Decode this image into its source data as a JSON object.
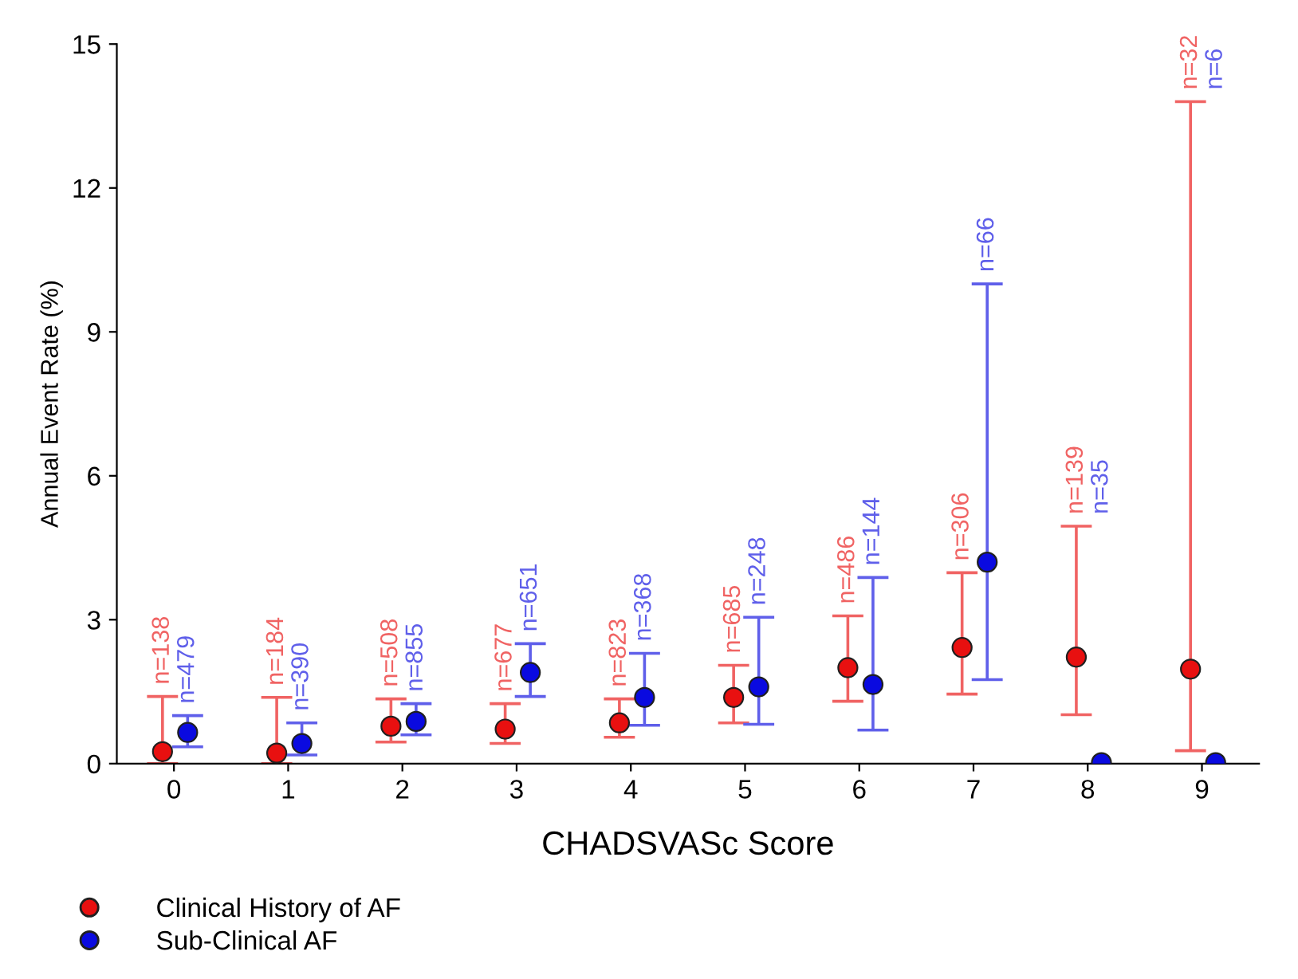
{
  "chart_data": {
    "type": "scatter",
    "xlabel": "CHADSVASc Score",
    "ylabel": "Annual Event Rate (%)",
    "categories": [
      "0",
      "1",
      "2",
      "3",
      "4",
      "5",
      "6",
      "7",
      "8",
      "9"
    ],
    "ylim": [
      0,
      15
    ],
    "yticks": [
      0,
      3,
      6,
      9,
      12,
      15
    ],
    "grid": false,
    "legend": "bottom left",
    "marker": "circle",
    "series": [
      {
        "name": "Clinical History of AF",
        "color": "#e81010",
        "values": [
          0.25,
          0.22,
          0.78,
          0.72,
          0.85,
          1.38,
          2.0,
          2.42,
          2.22,
          1.97
        ],
        "errors": [
          [
            0,
            1.4
          ],
          [
            0,
            1.38
          ],
          [
            0.45,
            1.35
          ],
          [
            0.42,
            1.25
          ],
          [
            0.55,
            1.35
          ],
          [
            0.85,
            2.05
          ],
          [
            1.3,
            3.08
          ],
          [
            1.45,
            3.98
          ],
          [
            1.02,
            4.95
          ],
          [
            0.27,
            13.8
          ]
        ]
      },
      {
        "name": "Sub-Clinical AF",
        "color": "#0a0ae0",
        "values": [
          0.65,
          0.42,
          0.88,
          1.9,
          1.38,
          1.6,
          1.65,
          4.2,
          0.02,
          0.02
        ],
        "errors": [
          [
            0.35,
            1.0
          ],
          [
            0.18,
            0.85
          ],
          [
            0.6,
            1.25
          ],
          [
            1.4,
            2.5
          ],
          [
            0.8,
            2.3
          ],
          [
            0.82,
            3.05
          ],
          [
            0.7,
            3.88
          ],
          [
            1.75,
            10.0
          ],
          null,
          null
        ]
      }
    ],
    "annotations": [
      {
        "text": "n=138",
        "x": "0",
        "y": 1.4
      },
      {
        "text": "n=479",
        "x": "0",
        "y": 1.0
      },
      {
        "text": "n=184",
        "x": "1",
        "y": 1.38
      },
      {
        "text": "n=390",
        "x": "1",
        "y": 0.85
      },
      {
        "text": "n=508",
        "x": "2",
        "y": 1.35
      },
      {
        "text": "n=855",
        "x": "2",
        "y": 1.25
      },
      {
        "text": "n=677",
        "x": "3",
        "y": 1.25
      },
      {
        "text": "n=651",
        "x": "3",
        "y": 2.5
      },
      {
        "text": "n=823",
        "x": "4",
        "y": 1.35
      },
      {
        "text": "n=368",
        "x": "4",
        "y": 2.3
      },
      {
        "text": "n=685",
        "x": "5",
        "y": 2.05
      },
      {
        "text": "n=248",
        "x": "5",
        "y": 3.05
      },
      {
        "text": "n=486",
        "x": "6",
        "y": 3.08
      },
      {
        "text": "n=144",
        "x": "6",
        "y": 3.88
      },
      {
        "text": "n=306",
        "x": "7",
        "y": 3.98
      },
      {
        "text": "n=66",
        "x": "7",
        "y": 10.0
      },
      {
        "text": "n=139",
        "x": "8",
        "y": 4.95
      },
      {
        "text": "n=35",
        "x": "8",
        "y": 4.95
      },
      {
        "text": "n=32",
        "x": "9",
        "y": 13.8
      },
      {
        "text": "n=6",
        "x": "9",
        "y": 13.8
      }
    ]
  }
}
